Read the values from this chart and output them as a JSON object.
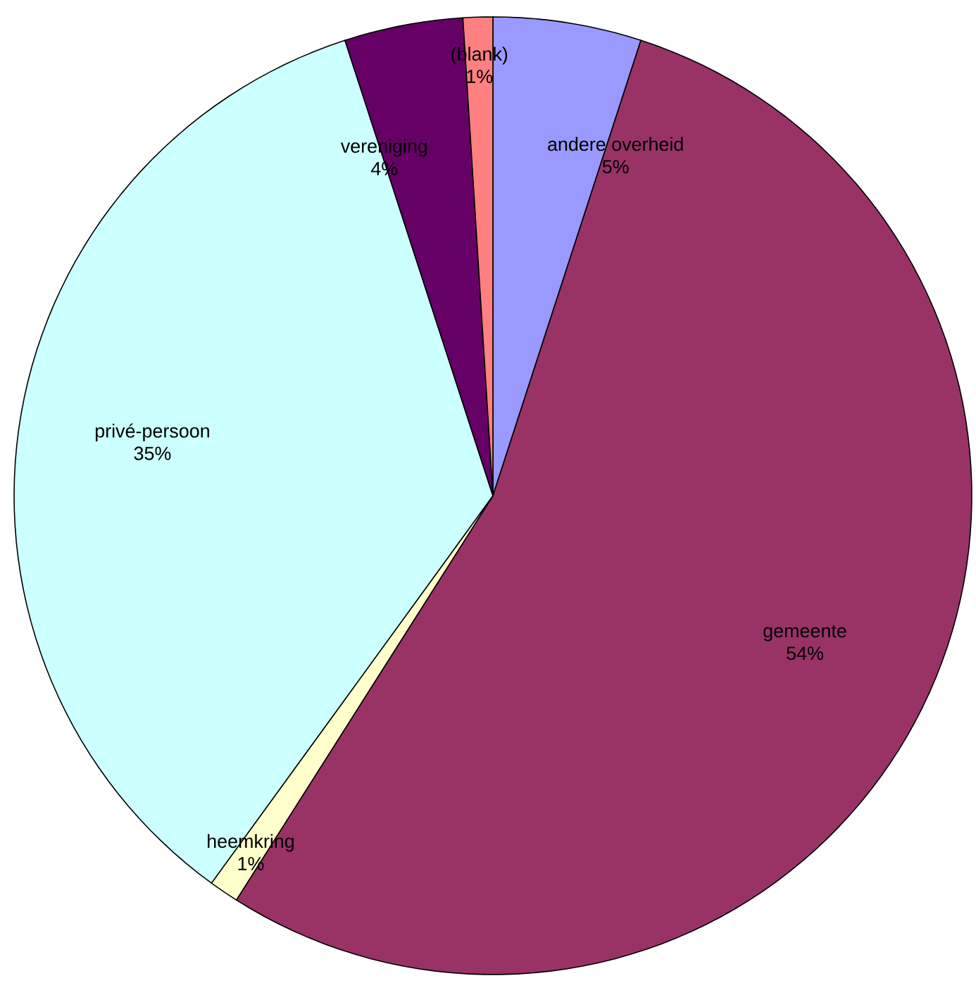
{
  "chart_data": {
    "type": "pie",
    "categories": [
      "andere overheid",
      "gemeente",
      "heemkring",
      "privé-persoon",
      "vereniging",
      "(blank)"
    ],
    "values": [
      5,
      54,
      1,
      35,
      4,
      1
    ],
    "value_labels": [
      "5%",
      "54%",
      "1%",
      "35%",
      "4%",
      "1%"
    ],
    "colors": [
      "#9999ff",
      "#993366",
      "#ffffcc",
      "#ccffff",
      "#660066",
      "#ff8080"
    ],
    "legend": false
  }
}
